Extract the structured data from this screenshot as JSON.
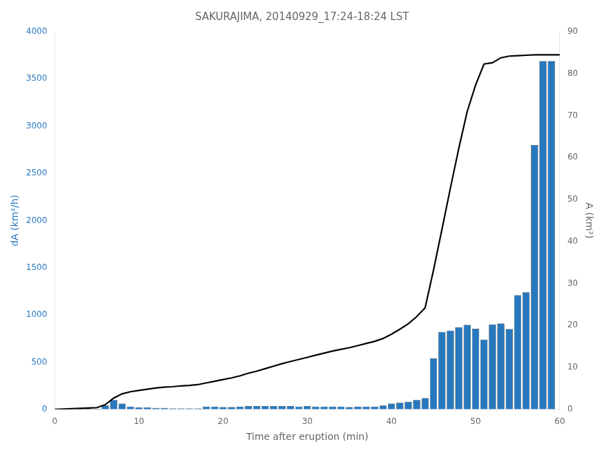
{
  "chart_data": {
    "type": "bar",
    "title": "SAKURAJIMA, 20140929_17:24-18:24 LST",
    "xlabel": "Time after eruption (min)",
    "ylabel": "dA (km²/h)",
    "y2label": "A (km²)",
    "grid": false,
    "xlim": [
      0,
      60
    ],
    "xticks": [
      0,
      10,
      20,
      30,
      40,
      50,
      60
    ],
    "ylim": [
      0,
      4000
    ],
    "yticks": [
      0,
      500,
      1000,
      1500,
      2000,
      2500,
      3000,
      3500,
      4000
    ],
    "y2lim": [
      0,
      90
    ],
    "y2ticks": [
      0,
      10,
      20,
      30,
      40,
      50,
      60,
      70,
      80,
      90
    ],
    "series": [
      {
        "type": "bar",
        "color": "#2878BE",
        "x": [
          1,
          2,
          3,
          4,
          5,
          6,
          7,
          8,
          9,
          10,
          11,
          12,
          13,
          14,
          15,
          16,
          17,
          18,
          19,
          20,
          21,
          22,
          23,
          24,
          25,
          26,
          27,
          28,
          29,
          30,
          31,
          32,
          33,
          34,
          35,
          36,
          37,
          38,
          39,
          40,
          41,
          42,
          43,
          44,
          45,
          46,
          47,
          48,
          49,
          50,
          51,
          52,
          53,
          54,
          55,
          56,
          57,
          58,
          59
        ],
        "values": [
          5,
          5,
          5,
          5,
          5,
          40,
          100,
          60,
          30,
          20,
          20,
          15,
          15,
          10,
          10,
          10,
          10,
          30,
          30,
          25,
          25,
          30,
          35,
          35,
          35,
          35,
          35,
          35,
          30,
          35,
          30,
          30,
          30,
          30,
          25,
          30,
          30,
          30,
          40,
          60,
          70,
          80,
          100,
          120,
          540,
          820,
          835,
          870,
          895,
          855,
          740,
          900,
          910,
          850,
          1210,
          1240,
          2800,
          3690,
          3690
        ]
      },
      {
        "type": "line",
        "color": "#000000",
        "axis": "y2",
        "x": [
          0,
          1,
          2,
          3,
          4,
          5,
          6,
          7,
          8,
          9,
          10,
          11,
          12,
          13,
          14,
          15,
          16,
          17,
          18,
          19,
          20,
          21,
          22,
          23,
          24,
          25,
          26,
          27,
          28,
          29,
          30,
          31,
          32,
          33,
          34,
          35,
          36,
          37,
          38,
          39,
          40,
          41,
          42,
          43,
          44,
          45,
          46,
          47,
          48,
          49,
          50,
          51,
          52,
          53,
          54,
          55,
          56,
          57,
          58,
          59,
          60
        ],
        "values": [
          0.0,
          0.08,
          0.17,
          0.25,
          0.33,
          0.42,
          1.1,
          2.7,
          3.7,
          4.2,
          4.5,
          4.8,
          5.1,
          5.3,
          5.4,
          5.6,
          5.7,
          5.9,
          6.3,
          6.7,
          7.1,
          7.5,
          8.0,
          8.6,
          9.1,
          9.7,
          10.3,
          10.9,
          11.4,
          11.9,
          12.4,
          12.9,
          13.4,
          13.9,
          14.3,
          14.7,
          15.2,
          15.7,
          16.2,
          16.9,
          17.9,
          19.1,
          20.4,
          22.1,
          24.2,
          33.2,
          42.9,
          52.7,
          62.2,
          71.0,
          77.3,
          82.3,
          82.6,
          83.8,
          84.2,
          84.3,
          84.4,
          84.5,
          84.5,
          84.5,
          84.5
        ]
      }
    ]
  }
}
